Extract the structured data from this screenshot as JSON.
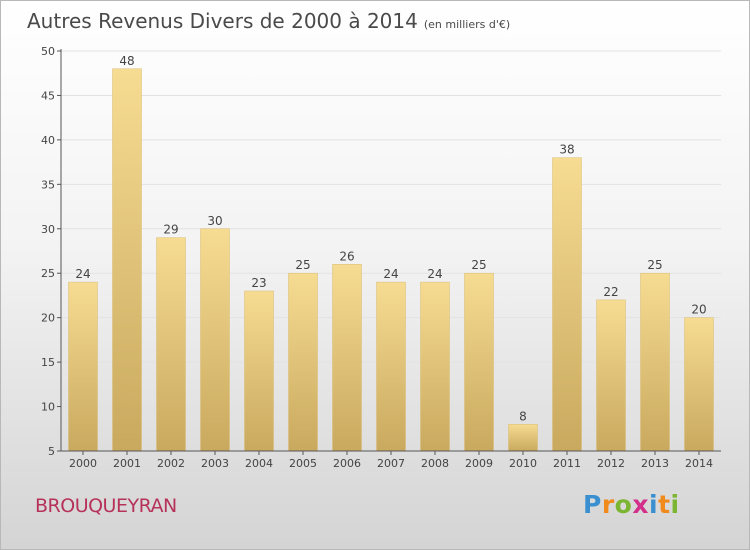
{
  "title": "Autres Revenus Divers de 2000 à 2014",
  "subtitle": "(en milliers d'€)",
  "commune": "BROUQUEYRAN",
  "logo": {
    "text": "Proxiti",
    "colors": [
      "#3a8fd0",
      "#f08a1c",
      "#7bb532",
      "#d2308a",
      "#3a8fd0",
      "#f08a1c",
      "#7bb532"
    ]
  },
  "colors": {
    "bar_top": "#f6dc92",
    "bar_bottom": "#c9a95e",
    "axis": "#555555",
    "grid": "#e2e2e2"
  },
  "chart_data": {
    "type": "bar",
    "categories": [
      "2000",
      "2001",
      "2002",
      "2003",
      "2004",
      "2005",
      "2006",
      "2007",
      "2008",
      "2009",
      "2010",
      "2011",
      "2012",
      "2013",
      "2014"
    ],
    "values": [
      24,
      48,
      29,
      30,
      23,
      25,
      26,
      24,
      24,
      25,
      8,
      38,
      22,
      25,
      20
    ],
    "ylim": [
      5,
      50
    ],
    "yticks": [
      5,
      10,
      15,
      20,
      25,
      30,
      35,
      40,
      45,
      50
    ],
    "grid": true,
    "data_labels": true
  }
}
